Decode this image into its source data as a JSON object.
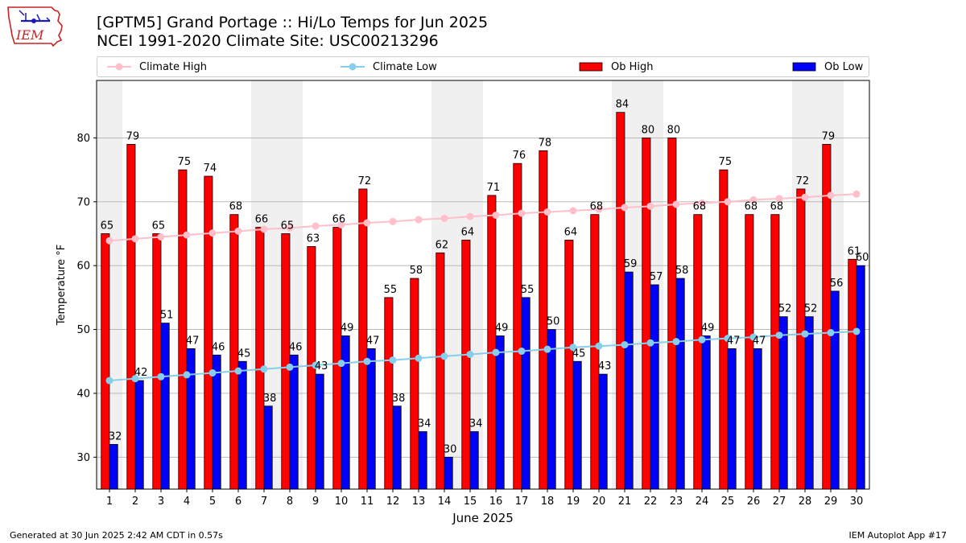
{
  "header": {
    "title_line1": "[GPTM5] Grand Portage :: Hi/Lo Temps for Jun 2025",
    "title_line2": "NCEI 1991-2020 Climate Site: USC00213296",
    "logo_text": "IEM"
  },
  "footer": {
    "left": "Generated at 30 Jun 2025 2:42 AM CDT in 0.57s",
    "right": "IEM Autoplot App #17"
  },
  "colors": {
    "climate_high": "#ffc0cb",
    "climate_low": "#87ceeb",
    "ob_high": "#ff0000",
    "ob_low": "#0000ff",
    "weekend_band": "#f0f0f0",
    "grid": "#b0b0b0"
  },
  "legend": {
    "items": [
      {
        "label": "Climate High",
        "kind": "line",
        "color": "#ffc0cb"
      },
      {
        "label": "Climate Low",
        "kind": "line",
        "color": "#87ceeb"
      },
      {
        "label": "Ob High",
        "kind": "bar",
        "color": "#ff0000"
      },
      {
        "label": "Ob Low",
        "kind": "bar",
        "color": "#0000ff"
      }
    ]
  },
  "chart_data": {
    "type": "bar",
    "xlabel": "June 2025",
    "ylabel": "Temperature °F",
    "ylim": [
      25,
      89
    ],
    "yticks": [
      30,
      40,
      50,
      60,
      70,
      80
    ],
    "grid": "horizontal",
    "legend_position": "top",
    "categories": [
      1,
      2,
      3,
      4,
      5,
      6,
      7,
      8,
      9,
      10,
      11,
      12,
      13,
      14,
      15,
      16,
      17,
      18,
      19,
      20,
      21,
      22,
      23,
      24,
      25,
      26,
      27,
      28,
      29,
      30
    ],
    "weekend_days": [
      1,
      7,
      8,
      14,
      15,
      21,
      22,
      28,
      29
    ],
    "series": [
      {
        "name": "Ob High",
        "type": "bar",
        "values": [
          65,
          79,
          65,
          75,
          74,
          68,
          66,
          65,
          63,
          66,
          72,
          55,
          58,
          62,
          64,
          71,
          76,
          78,
          64,
          68,
          84,
          80,
          80,
          68,
          75,
          68,
          68,
          72,
          79,
          61
        ]
      },
      {
        "name": "Ob Low",
        "type": "bar",
        "values": [
          32,
          42,
          51,
          47,
          46,
          45,
          38,
          46,
          43,
          49,
          47,
          38,
          34,
          30,
          34,
          49,
          55,
          50,
          45,
          43,
          59,
          57,
          58,
          49,
          47,
          47,
          52,
          52,
          56,
          60
        ]
      },
      {
        "name": "Climate High",
        "type": "line",
        "values": [
          63.9,
          64.2,
          64.5,
          64.8,
          65.1,
          65.4,
          65.7,
          65.9,
          66.2,
          66.4,
          66.7,
          66.9,
          67.2,
          67.4,
          67.7,
          67.9,
          68.2,
          68.4,
          68.6,
          68.8,
          69.1,
          69.3,
          69.6,
          69.8,
          70.0,
          70.3,
          70.5,
          70.7,
          71.0,
          71.2
        ]
      },
      {
        "name": "Climate Low",
        "type": "line",
        "values": [
          42.0,
          42.3,
          42.6,
          42.9,
          43.2,
          43.5,
          43.8,
          44.1,
          44.4,
          44.7,
          45.0,
          45.2,
          45.5,
          45.8,
          46.1,
          46.4,
          46.6,
          46.9,
          47.2,
          47.4,
          47.6,
          47.9,
          48.1,
          48.4,
          48.6,
          48.8,
          49.1,
          49.3,
          49.5,
          49.7
        ]
      }
    ]
  }
}
